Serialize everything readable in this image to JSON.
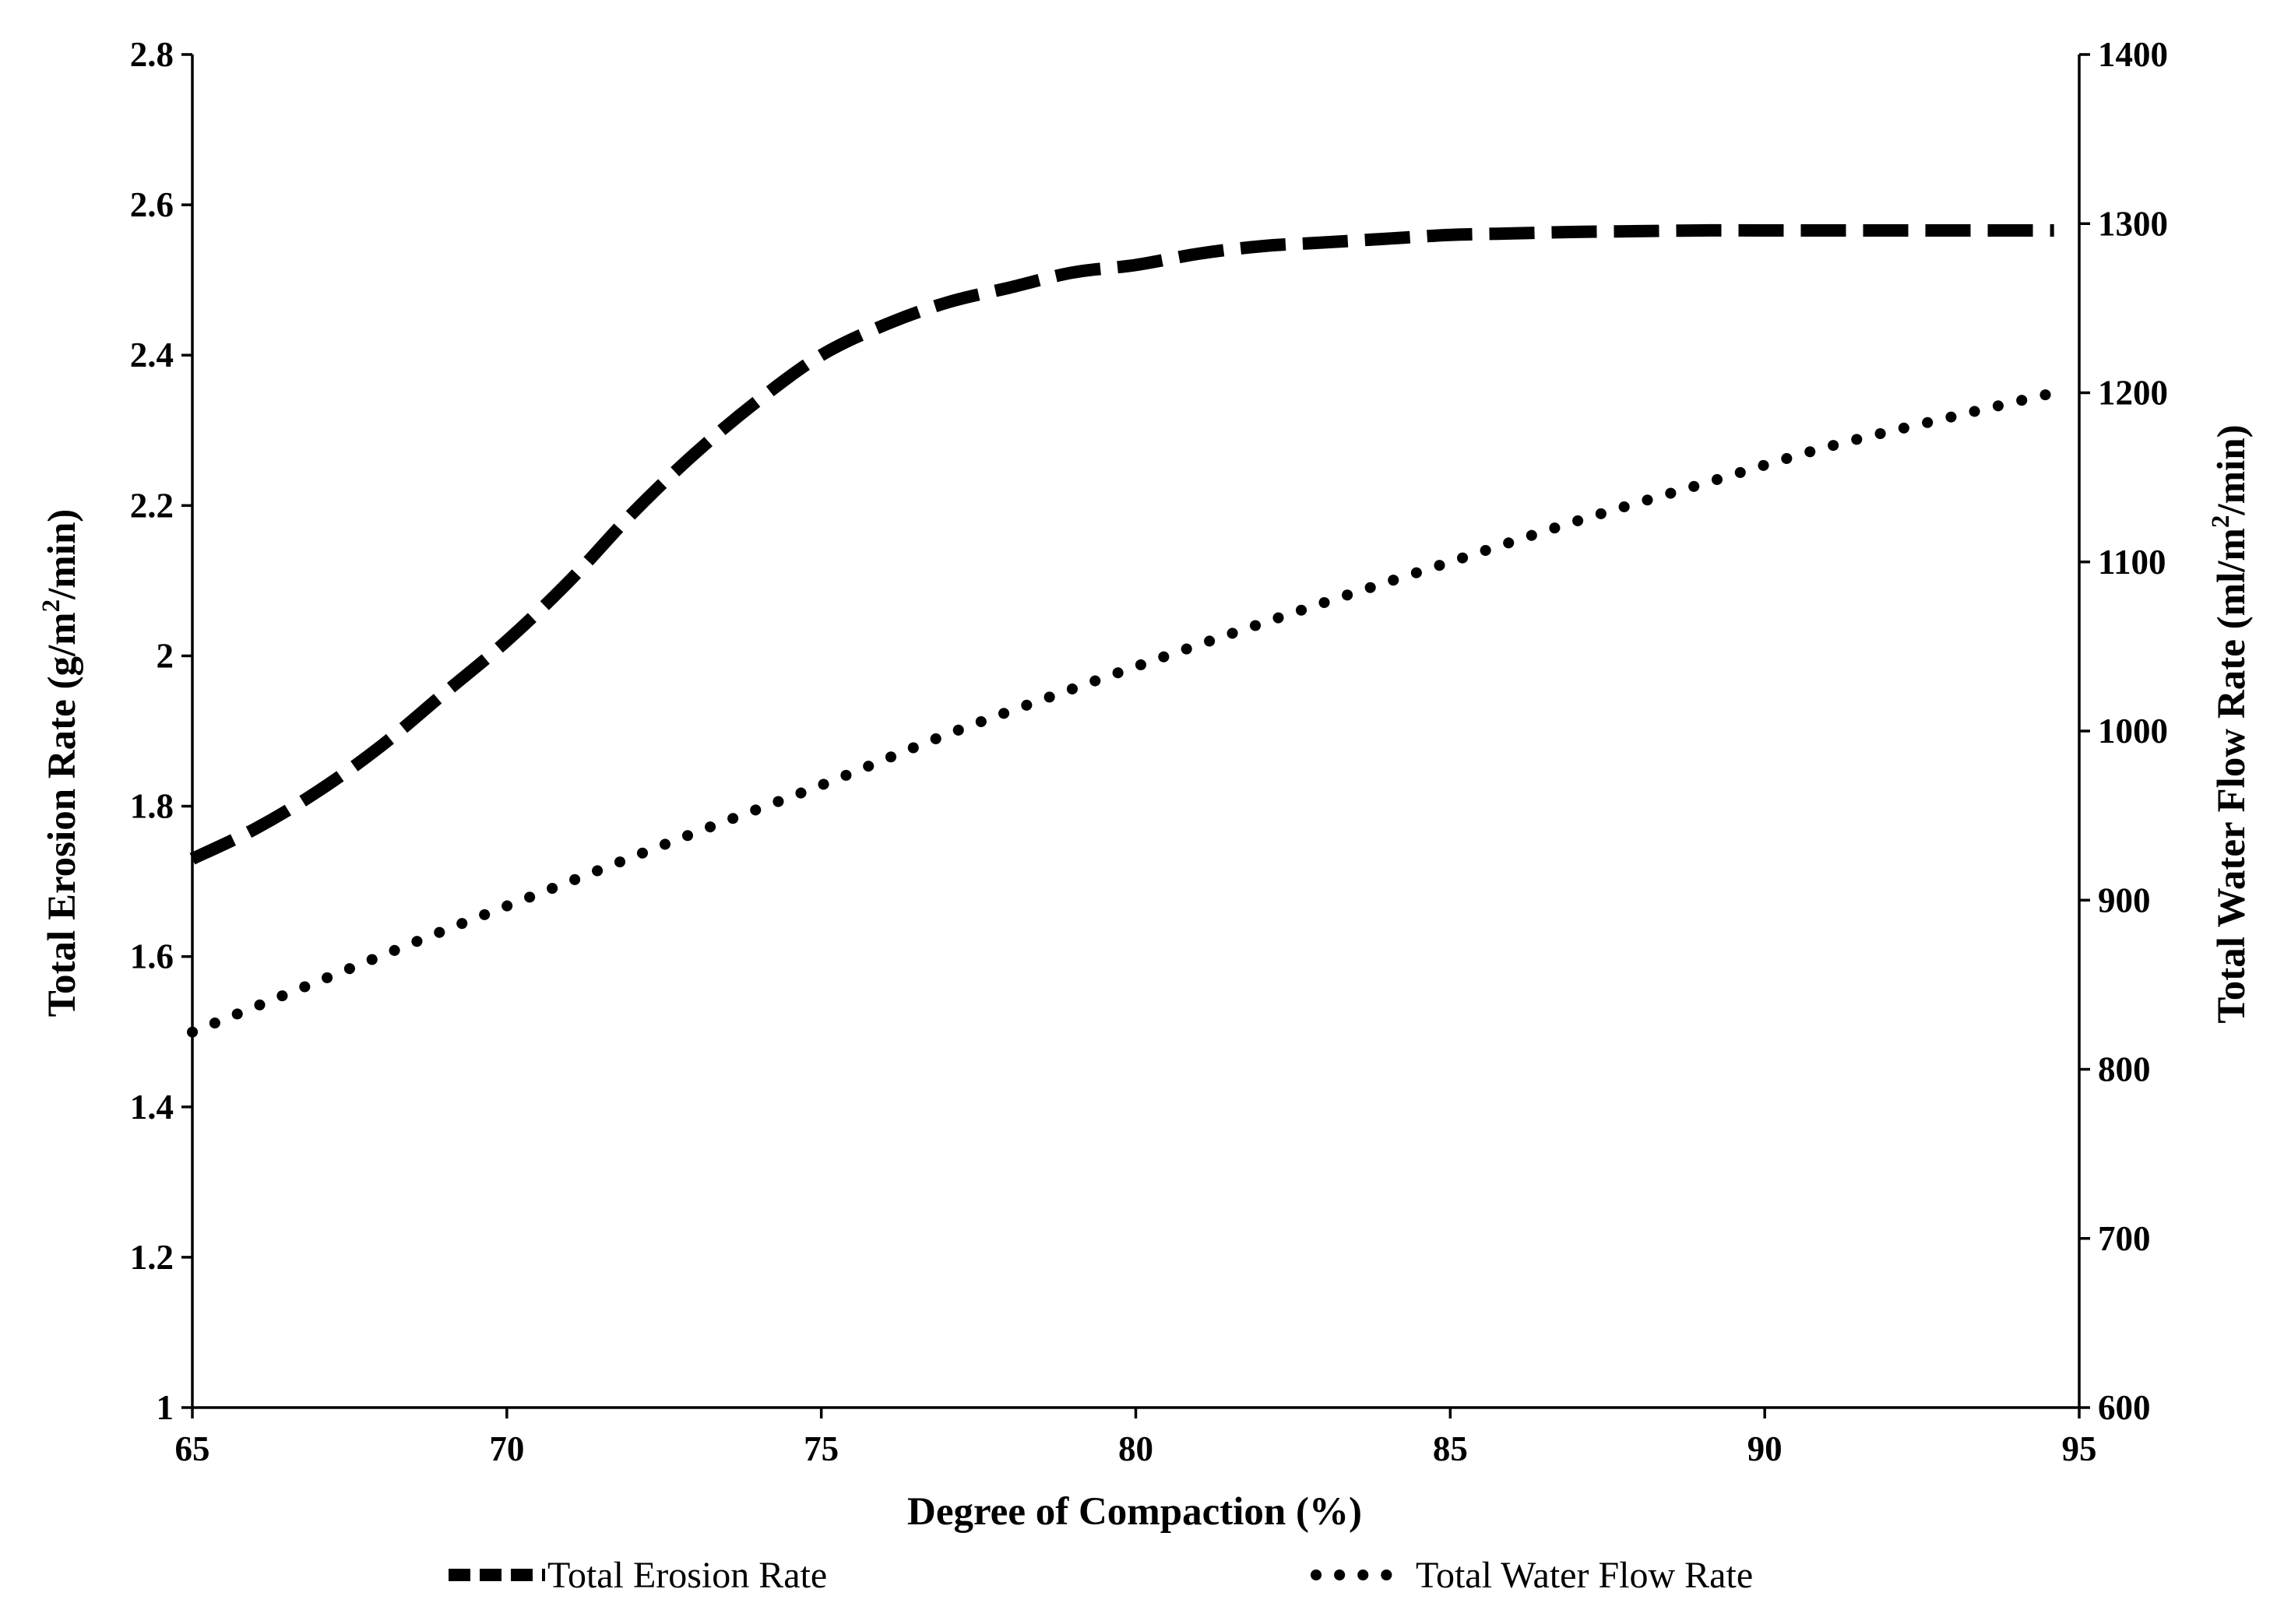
{
  "chart_data": {
    "type": "line",
    "title": "",
    "xlabel": "Degree of Compaction (%)",
    "ylabel": "Total Erosion Rate (g/m²/min)",
    "ylabel_parts": {
      "before": "Total Erosion Rate (g/m",
      "sup": "2",
      "after": "/min)"
    },
    "y2label": "Total Water Flow Rate (ml/m²/min)",
    "y2label_parts": {
      "before": "Total Water Flow Rate (ml/m",
      "sup": "2",
      "after": "/min)"
    },
    "xlim": [
      65,
      95
    ],
    "ylim": [
      1,
      2.8
    ],
    "y2lim": [
      600,
      1400
    ],
    "xticks": [
      65,
      70,
      75,
      80,
      85,
      90,
      95
    ],
    "yticks": [
      "1",
      "1.2",
      "1.4",
      "1.6",
      "1.8",
      "2",
      "2.2",
      "2.4",
      "2.6",
      "2.8"
    ],
    "y2ticks": [
      "600",
      "700",
      "800",
      "900",
      "1000",
      "1100",
      "1200",
      "1300",
      "1400"
    ],
    "grid": false,
    "legend_position": "bottom",
    "series": [
      {
        "name": "Total Erosion Rate",
        "axis": "left",
        "style": "dashed",
        "x": [
          65,
          66,
          67,
          68,
          69,
          70,
          71,
          72,
          73,
          74,
          75,
          76,
          77,
          78,
          79,
          80,
          81,
          82,
          83,
          84,
          85,
          86,
          87,
          88,
          89,
          90,
          91,
          92,
          93,
          94,
          94.6
        ],
        "y": [
          1.73,
          1.77,
          1.82,
          1.88,
          1.95,
          2.02,
          2.1,
          2.19,
          2.27,
          2.34,
          2.4,
          2.44,
          2.47,
          2.49,
          2.51,
          2.52,
          2.535,
          2.545,
          2.55,
          2.555,
          2.56,
          2.562,
          2.564,
          2.565,
          2.566,
          2.566,
          2.566,
          2.566,
          2.566,
          2.566,
          2.566
        ]
      },
      {
        "name": "Total Water Flow Rate",
        "axis": "right",
        "style": "dotted",
        "x": [
          65,
          67,
          69,
          71,
          73,
          75,
          77,
          79,
          81,
          83,
          85,
          87,
          89,
          91,
          93,
          94.6
        ],
        "y": [
          822,
          852,
          882,
          911,
          940,
          968,
          998,
          1025,
          1051,
          1076,
          1100,
          1124,
          1146,
          1168,
          1186,
          1200
        ]
      }
    ]
  }
}
